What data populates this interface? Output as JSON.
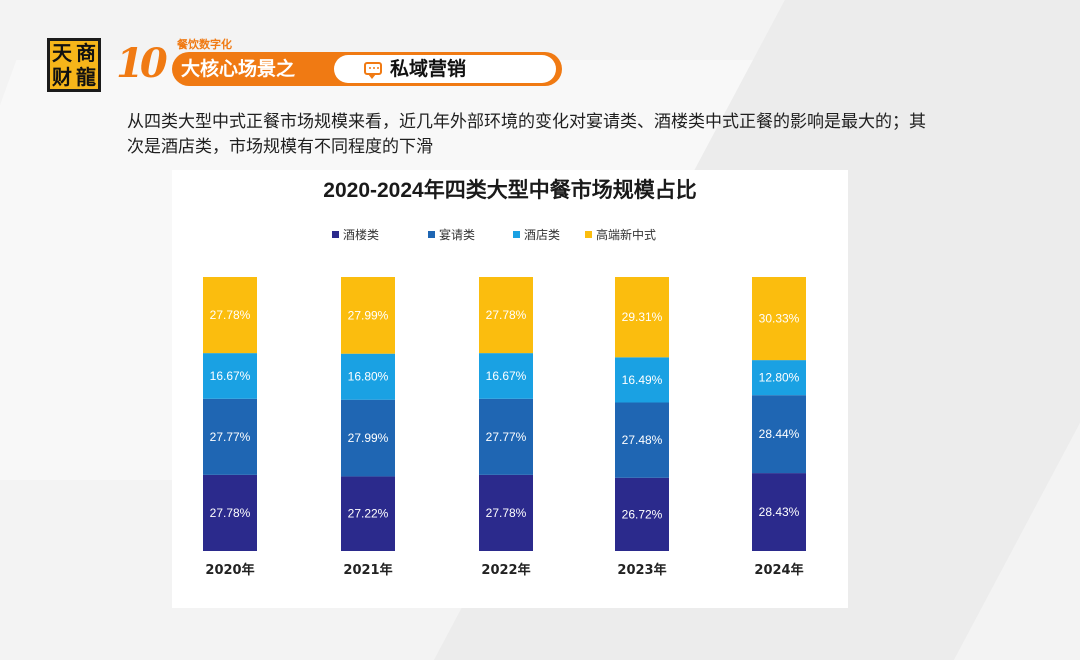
{
  "logo": {
    "chars": [
      "天",
      "商",
      "财",
      "龍"
    ]
  },
  "header": {
    "number": "10",
    "subtitle": "餐饮数字化",
    "left_text": "大核心场景之",
    "right_text": "私域营销",
    "accent_color": "#f07a13"
  },
  "description": "从四类大型中式正餐市场规模来看，近几年外部环境的变化对宴请类、酒楼类中式正餐的影响是最大的；其次是酒店类，市场规模有不同程度的下滑",
  "chart_data": {
    "type": "bar",
    "stacked": true,
    "title": "2020-2024年四类大型中餐市场规模占比",
    "categories": [
      "2020年",
      "2021年",
      "2022年",
      "2023年",
      "2024年"
    ],
    "series": [
      {
        "name": "酒楼类",
        "color": "#2b2a8c",
        "values": [
          27.78,
          27.22,
          27.78,
          26.72,
          28.43
        ],
        "labels": [
          "27.78%",
          "27.22%",
          "27.78%",
          "26.72%",
          "28.43%"
        ]
      },
      {
        "name": "宴请类",
        "color": "#1f66b3",
        "values": [
          27.77,
          27.99,
          27.77,
          27.48,
          28.44
        ],
        "labels": [
          "27.77%",
          "27.99%",
          "27.77%",
          "27.48%",
          "28.44%"
        ]
      },
      {
        "name": "酒店类",
        "color": "#1aa1e3",
        "values": [
          16.67,
          16.8,
          16.67,
          16.49,
          12.8
        ],
        "labels": [
          "16.67%",
          "16.80%",
          "16.67%",
          "16.49%",
          "12.80%"
        ]
      },
      {
        "name": "高端新中式",
        "color": "#fbbd0e",
        "values": [
          27.78,
          27.99,
          27.78,
          29.31,
          30.33
        ],
        "labels": [
          "27.78%",
          "27.99%",
          "27.78%",
          "29.31%",
          "30.33%"
        ]
      }
    ],
    "ylim": [
      0,
      100
    ],
    "legend": "top",
    "grid": false
  }
}
